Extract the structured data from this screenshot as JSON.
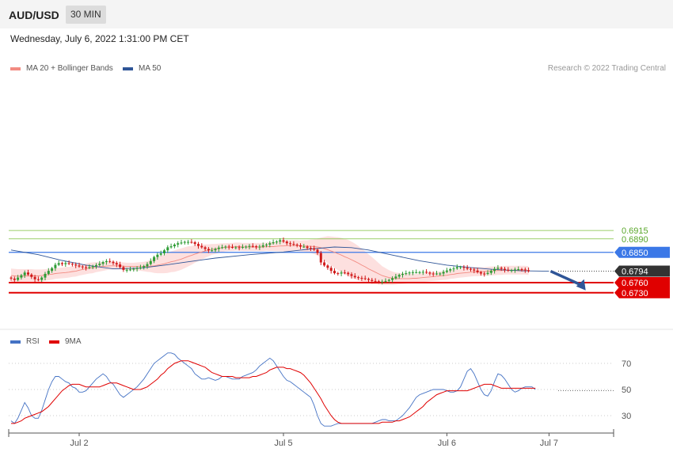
{
  "header": {
    "symbol": "AUD/USD",
    "timeframe": "30 MIN"
  },
  "datetime": "Wednesday, July 6, 2022 1:31:00 PM CET",
  "legend": [
    {
      "label": "MA 20 + Bollinger Bands",
      "color": "#f28b82"
    },
    {
      "label": "MA 50",
      "color": "#2f5597"
    }
  ],
  "credit": "Research © 2022 Trading Central",
  "rsi_legend": [
    {
      "label": "RSI",
      "color": "#4472c4"
    },
    {
      "label": "9MA",
      "color": "#e00000"
    }
  ],
  "colors": {
    "up": "#2e9c35",
    "down": "#d11a1a",
    "resistance_green": "#7cbf3b",
    "pivot_blue": "#3b78e7",
    "support_red": "#e00000",
    "arrow": "#2f5597"
  },
  "chart_data": [
    {
      "type": "line",
      "name": "price",
      "ylim": [
        0.6712,
        0.6935
      ],
      "x_ticks": [
        {
          "label": "Jul 2",
          "bar": 20
        },
        {
          "label": "Jul 5",
          "bar": 80
        },
        {
          "label": "Jul 6",
          "bar": 128
        },
        {
          "label": "Jul 7",
          "bar": 158
        }
      ],
      "levels": [
        {
          "value": 0.6915,
          "label": "0.6915",
          "kind": "resistance"
        },
        {
          "value": 0.689,
          "label": "0.6890",
          "kind": "resistance"
        },
        {
          "value": 0.685,
          "label": "0.6850",
          "kind": "pivot"
        },
        {
          "value": 0.6794,
          "label": "0.6794",
          "kind": "last"
        },
        {
          "value": 0.676,
          "label": "0.6760",
          "kind": "support"
        },
        {
          "value": 0.673,
          "label": "0.6730",
          "kind": "support"
        }
      ],
      "close": [
        0.6772,
        0.6768,
        0.6775,
        0.6782,
        0.679,
        0.6784,
        0.6777,
        0.677,
        0.6768,
        0.6775,
        0.6786,
        0.6795,
        0.6803,
        0.6813,
        0.6818,
        0.6815,
        0.6818,
        0.6816,
        0.6814,
        0.6811,
        0.6808,
        0.6806,
        0.6804,
        0.6806,
        0.6809,
        0.6812,
        0.6816,
        0.6821,
        0.6824,
        0.6822,
        0.6818,
        0.6814,
        0.6806,
        0.6798,
        0.6798,
        0.6799,
        0.6801,
        0.6803,
        0.6805,
        0.6809,
        0.6815,
        0.6824,
        0.6836,
        0.6843,
        0.6847,
        0.6856,
        0.6865,
        0.6868,
        0.6873,
        0.6877,
        0.6879,
        0.6881,
        0.6881,
        0.688,
        0.6875,
        0.6869,
        0.6865,
        0.686,
        0.6856,
        0.6856,
        0.686,
        0.6864,
        0.6865,
        0.6867,
        0.6866,
        0.6865,
        0.6865,
        0.6864,
        0.6866,
        0.6867,
        0.6869,
        0.6868,
        0.6865,
        0.6867,
        0.6871,
        0.6873,
        0.6877,
        0.688,
        0.6882,
        0.6886,
        0.6882,
        0.6877,
        0.6875,
        0.6873,
        0.6871,
        0.6867,
        0.6867,
        0.6863,
        0.6862,
        0.6858,
        0.6848,
        0.682,
        0.6811,
        0.6804,
        0.6795,
        0.6788,
        0.6787,
        0.679,
        0.6789,
        0.6785,
        0.678,
        0.6776,
        0.6774,
        0.6773,
        0.6771,
        0.6768,
        0.6765,
        0.6764,
        0.6763,
        0.6763,
        0.6765,
        0.6768,
        0.6773,
        0.6778,
        0.6783,
        0.6786,
        0.6788,
        0.679,
        0.6791,
        0.6791,
        0.6791,
        0.6792,
        0.679,
        0.6787,
        0.6786,
        0.6787,
        0.6787,
        0.6792,
        0.6796,
        0.68,
        0.6802,
        0.6806,
        0.6806,
        0.6804,
        0.6801,
        0.6799,
        0.6796,
        0.6791,
        0.6787,
        0.6786,
        0.6789,
        0.6795,
        0.6801,
        0.6804,
        0.6801,
        0.6798,
        0.6796,
        0.6797,
        0.6799,
        0.68,
        0.6799,
        0.6797,
        0.6794
      ],
      "ma20": [
        0.6781,
        0.678,
        0.6779,
        0.6779,
        0.678,
        0.678,
        0.678,
        0.678,
        0.678,
        0.6781,
        0.6783,
        0.6784,
        0.6785,
        0.6787,
        0.6788,
        0.6789,
        0.679,
        0.6791,
        0.6793,
        0.6794,
        0.6797,
        0.6799,
        0.6801,
        0.6803,
        0.6804,
        0.6806,
        0.6807,
        0.6808,
        0.6809,
        0.681,
        0.681,
        0.681,
        0.681,
        0.6809,
        0.6808,
        0.6808,
        0.6808,
        0.6808,
        0.6808,
        0.6808,
        0.6808,
        0.6809,
        0.681,
        0.6812,
        0.6814,
        0.6816,
        0.6819,
        0.6822,
        0.6824,
        0.6827,
        0.683,
        0.6834,
        0.6838,
        0.6841,
        0.6845,
        0.6848,
        0.6851,
        0.6854,
        0.6856,
        0.6859,
        0.686,
        0.6862,
        0.6864,
        0.6865,
        0.6866,
        0.6866,
        0.6867,
        0.6867,
        0.6866,
        0.6866,
        0.6866,
        0.6866,
        0.6866,
        0.6866,
        0.6866,
        0.6867,
        0.6867,
        0.6867,
        0.6868,
        0.6869,
        0.6869,
        0.687,
        0.687,
        0.687,
        0.687,
        0.6869,
        0.6869,
        0.6868,
        0.6868,
        0.6867,
        0.6866,
        0.6864,
        0.6861,
        0.6858,
        0.6854,
        0.685,
        0.6846,
        0.6842,
        0.6837,
        0.6833,
        0.6828,
        0.6823,
        0.6818,
        0.6812,
        0.6807,
        0.6801,
        0.6796,
        0.6791,
        0.6786,
        0.6781,
        0.6778,
        0.6775,
        0.6773,
        0.6772,
        0.6772,
        0.6772,
        0.6772,
        0.6772,
        0.6773,
        0.6773,
        0.6774,
        0.6775,
        0.6776,
        0.6777,
        0.6778,
        0.6779,
        0.678,
        0.6781,
        0.6782,
        0.6784,
        0.6785,
        0.6787,
        0.6788,
        0.6789,
        0.679,
        0.6791,
        0.6792,
        0.6792,
        0.6793,
        0.6793,
        0.6794,
        0.6795,
        0.6795,
        0.6796,
        0.6796,
        0.6797,
        0.6797,
        0.6797,
        0.6797,
        0.6797,
        0.6797,
        0.6797,
        0.6796
      ],
      "bb_width": [
        0.0021,
        0.0021,
        0.0021,
        0.0021,
        0.002,
        0.002,
        0.002,
        0.0019,
        0.0019,
        0.0018,
        0.0017,
        0.0017,
        0.0016,
        0.0016,
        0.0016,
        0.0016,
        0.0016,
        0.0016,
        0.0016,
        0.0016,
        0.0016,
        0.0016,
        0.0016,
        0.0016,
        0.0016,
        0.0015,
        0.0014,
        0.0013,
        0.0012,
        0.0011,
        0.0011,
        0.0011,
        0.0011,
        0.0011,
        0.0011,
        0.0011,
        0.0011,
        0.0012,
        0.0013,
        0.0014,
        0.0016,
        0.0018,
        0.0021,
        0.0024,
        0.0026,
        0.0028,
        0.003,
        0.0031,
        0.0032,
        0.0032,
        0.0032,
        0.0031,
        0.003,
        0.0028,
        0.0026,
        0.0024,
        0.0022,
        0.002,
        0.0018,
        0.0016,
        0.0015,
        0.0014,
        0.0013,
        0.0012,
        0.0012,
        0.0012,
        0.0012,
        0.0012,
        0.0012,
        0.0012,
        0.0012,
        0.0012,
        0.0012,
        0.0012,
        0.0012,
        0.0012,
        0.0013,
        0.0013,
        0.0014,
        0.0015,
        0.0016,
        0.0016,
        0.0016,
        0.0016,
        0.0016,
        0.0016,
        0.0017,
        0.0018,
        0.002,
        0.0022,
        0.0025,
        0.003,
        0.0035,
        0.004,
        0.0043,
        0.0046,
        0.0049,
        0.0051,
        0.0053,
        0.0054,
        0.0054,
        0.0053,
        0.0051,
        0.0049,
        0.0046,
        0.0043,
        0.004,
        0.0036,
        0.0032,
        0.0028,
        0.0025,
        0.0022,
        0.002,
        0.0018,
        0.0017,
        0.0016,
        0.0015,
        0.0014,
        0.0014,
        0.0013,
        0.0013,
        0.0013,
        0.0013,
        0.0013,
        0.0013,
        0.0013,
        0.0013,
        0.0013,
        0.0013,
        0.0013,
        0.0013,
        0.0013,
        0.0013,
        0.0013,
        0.0013,
        0.0013,
        0.0013,
        0.0013,
        0.0013,
        0.0013,
        0.0013,
        0.0013,
        0.0013,
        0.0013,
        0.0013,
        0.0013,
        0.0013,
        0.0013,
        0.0013,
        0.0013,
        0.0013,
        0.0013,
        0.0013,
        0.0013,
        0.0013
      ],
      "ma50_points": [
        [
          0,
          0.6857
        ],
        [
          8,
          0.6843
        ],
        [
          15,
          0.6826
        ],
        [
          22,
          0.6812
        ],
        [
          30,
          0.6801
        ],
        [
          38,
          0.6803
        ],
        [
          45,
          0.6812
        ],
        [
          52,
          0.6822
        ],
        [
          60,
          0.6833
        ],
        [
          70,
          0.6843
        ],
        [
          80,
          0.6851
        ],
        [
          88,
          0.686
        ],
        [
          95,
          0.6866
        ],
        [
          100,
          0.6864
        ],
        [
          105,
          0.6857
        ],
        [
          112,
          0.6842
        ],
        [
          120,
          0.6825
        ],
        [
          128,
          0.6812
        ],
        [
          135,
          0.6805
        ],
        [
          142,
          0.6799
        ],
        [
          150,
          0.6795
        ],
        [
          158,
          0.6794
        ]
      ],
      "forecast_arrow": {
        "from_bar": 158,
        "from": 0.6794,
        "to_bar": 169,
        "to": 0.673
      }
    },
    {
      "type": "line",
      "name": "RSI panel",
      "ylim": [
        20,
        80
      ],
      "y_ticks": [
        70,
        50,
        30
      ],
      "series": [
        {
          "name": "RSI",
          "values": [
            26,
            24,
            28,
            34,
            40,
            36,
            30,
            28,
            28,
            34,
            42,
            50,
            56,
            60,
            60,
            58,
            56,
            55,
            52,
            51,
            48,
            48,
            49,
            52,
            55,
            58,
            60,
            62,
            60,
            56,
            54,
            50,
            46,
            44,
            46,
            48,
            50,
            52,
            55,
            58,
            62,
            66,
            70,
            72,
            74,
            76,
            78,
            78,
            77,
            74,
            72,
            70,
            68,
            66,
            62,
            60,
            58,
            58,
            59,
            58,
            57,
            58,
            60,
            60,
            59,
            58,
            58,
            58,
            60,
            61,
            62,
            63,
            65,
            68,
            70,
            72,
            74,
            72,
            68,
            64,
            60,
            57,
            56,
            54,
            52,
            50,
            48,
            46,
            44,
            38,
            30,
            24,
            22,
            22,
            22,
            23,
            24,
            24,
            24,
            24,
            24,
            24,
            24,
            24,
            24,
            24,
            24,
            25,
            26,
            27,
            27,
            26,
            26,
            26,
            28,
            30,
            33,
            36,
            40,
            44,
            46,
            47,
            48,
            49,
            50,
            50,
            50,
            50,
            49,
            48,
            48,
            49,
            52,
            58,
            64,
            66,
            62,
            56,
            50,
            46,
            45,
            49,
            56,
            62,
            61,
            58,
            54,
            50,
            48,
            49,
            51,
            52,
            52,
            52,
            50
          ]
        },
        {
          "name": "9MA",
          "values": [
            24,
            24,
            25,
            26,
            28,
            29,
            30,
            31,
            32,
            33,
            35,
            37,
            40,
            43,
            46,
            49,
            51,
            53,
            54,
            54,
            54,
            53,
            52,
            52,
            52,
            52,
            52,
            53,
            54,
            55,
            55,
            55,
            54,
            53,
            52,
            51,
            50,
            50,
            50,
            51,
            52,
            54,
            56,
            58,
            61,
            63,
            66,
            68,
            70,
            71,
            72,
            72,
            72,
            71,
            70,
            69,
            68,
            67,
            65,
            63,
            62,
            61,
            60,
            60,
            60,
            60,
            59,
            59,
            59,
            59,
            59,
            60,
            60,
            61,
            62,
            63,
            65,
            66,
            67,
            67,
            67,
            66,
            66,
            65,
            64,
            63,
            61,
            58,
            55,
            51,
            47,
            43,
            38,
            34,
            30,
            27,
            25,
            24,
            24,
            24,
            24,
            24,
            24,
            24,
            24,
            24,
            24,
            24,
            24,
            25,
            25,
            25,
            25,
            26,
            26,
            27,
            28,
            29,
            31,
            33,
            35,
            37,
            40,
            42,
            44,
            46,
            47,
            48,
            49,
            49,
            49,
            49,
            49,
            49,
            49,
            50,
            51,
            52,
            53,
            54,
            54,
            54,
            53,
            52,
            51,
            51,
            51,
            51,
            51,
            51,
            51,
            51,
            51,
            51,
            51
          ]
        }
      ]
    }
  ]
}
